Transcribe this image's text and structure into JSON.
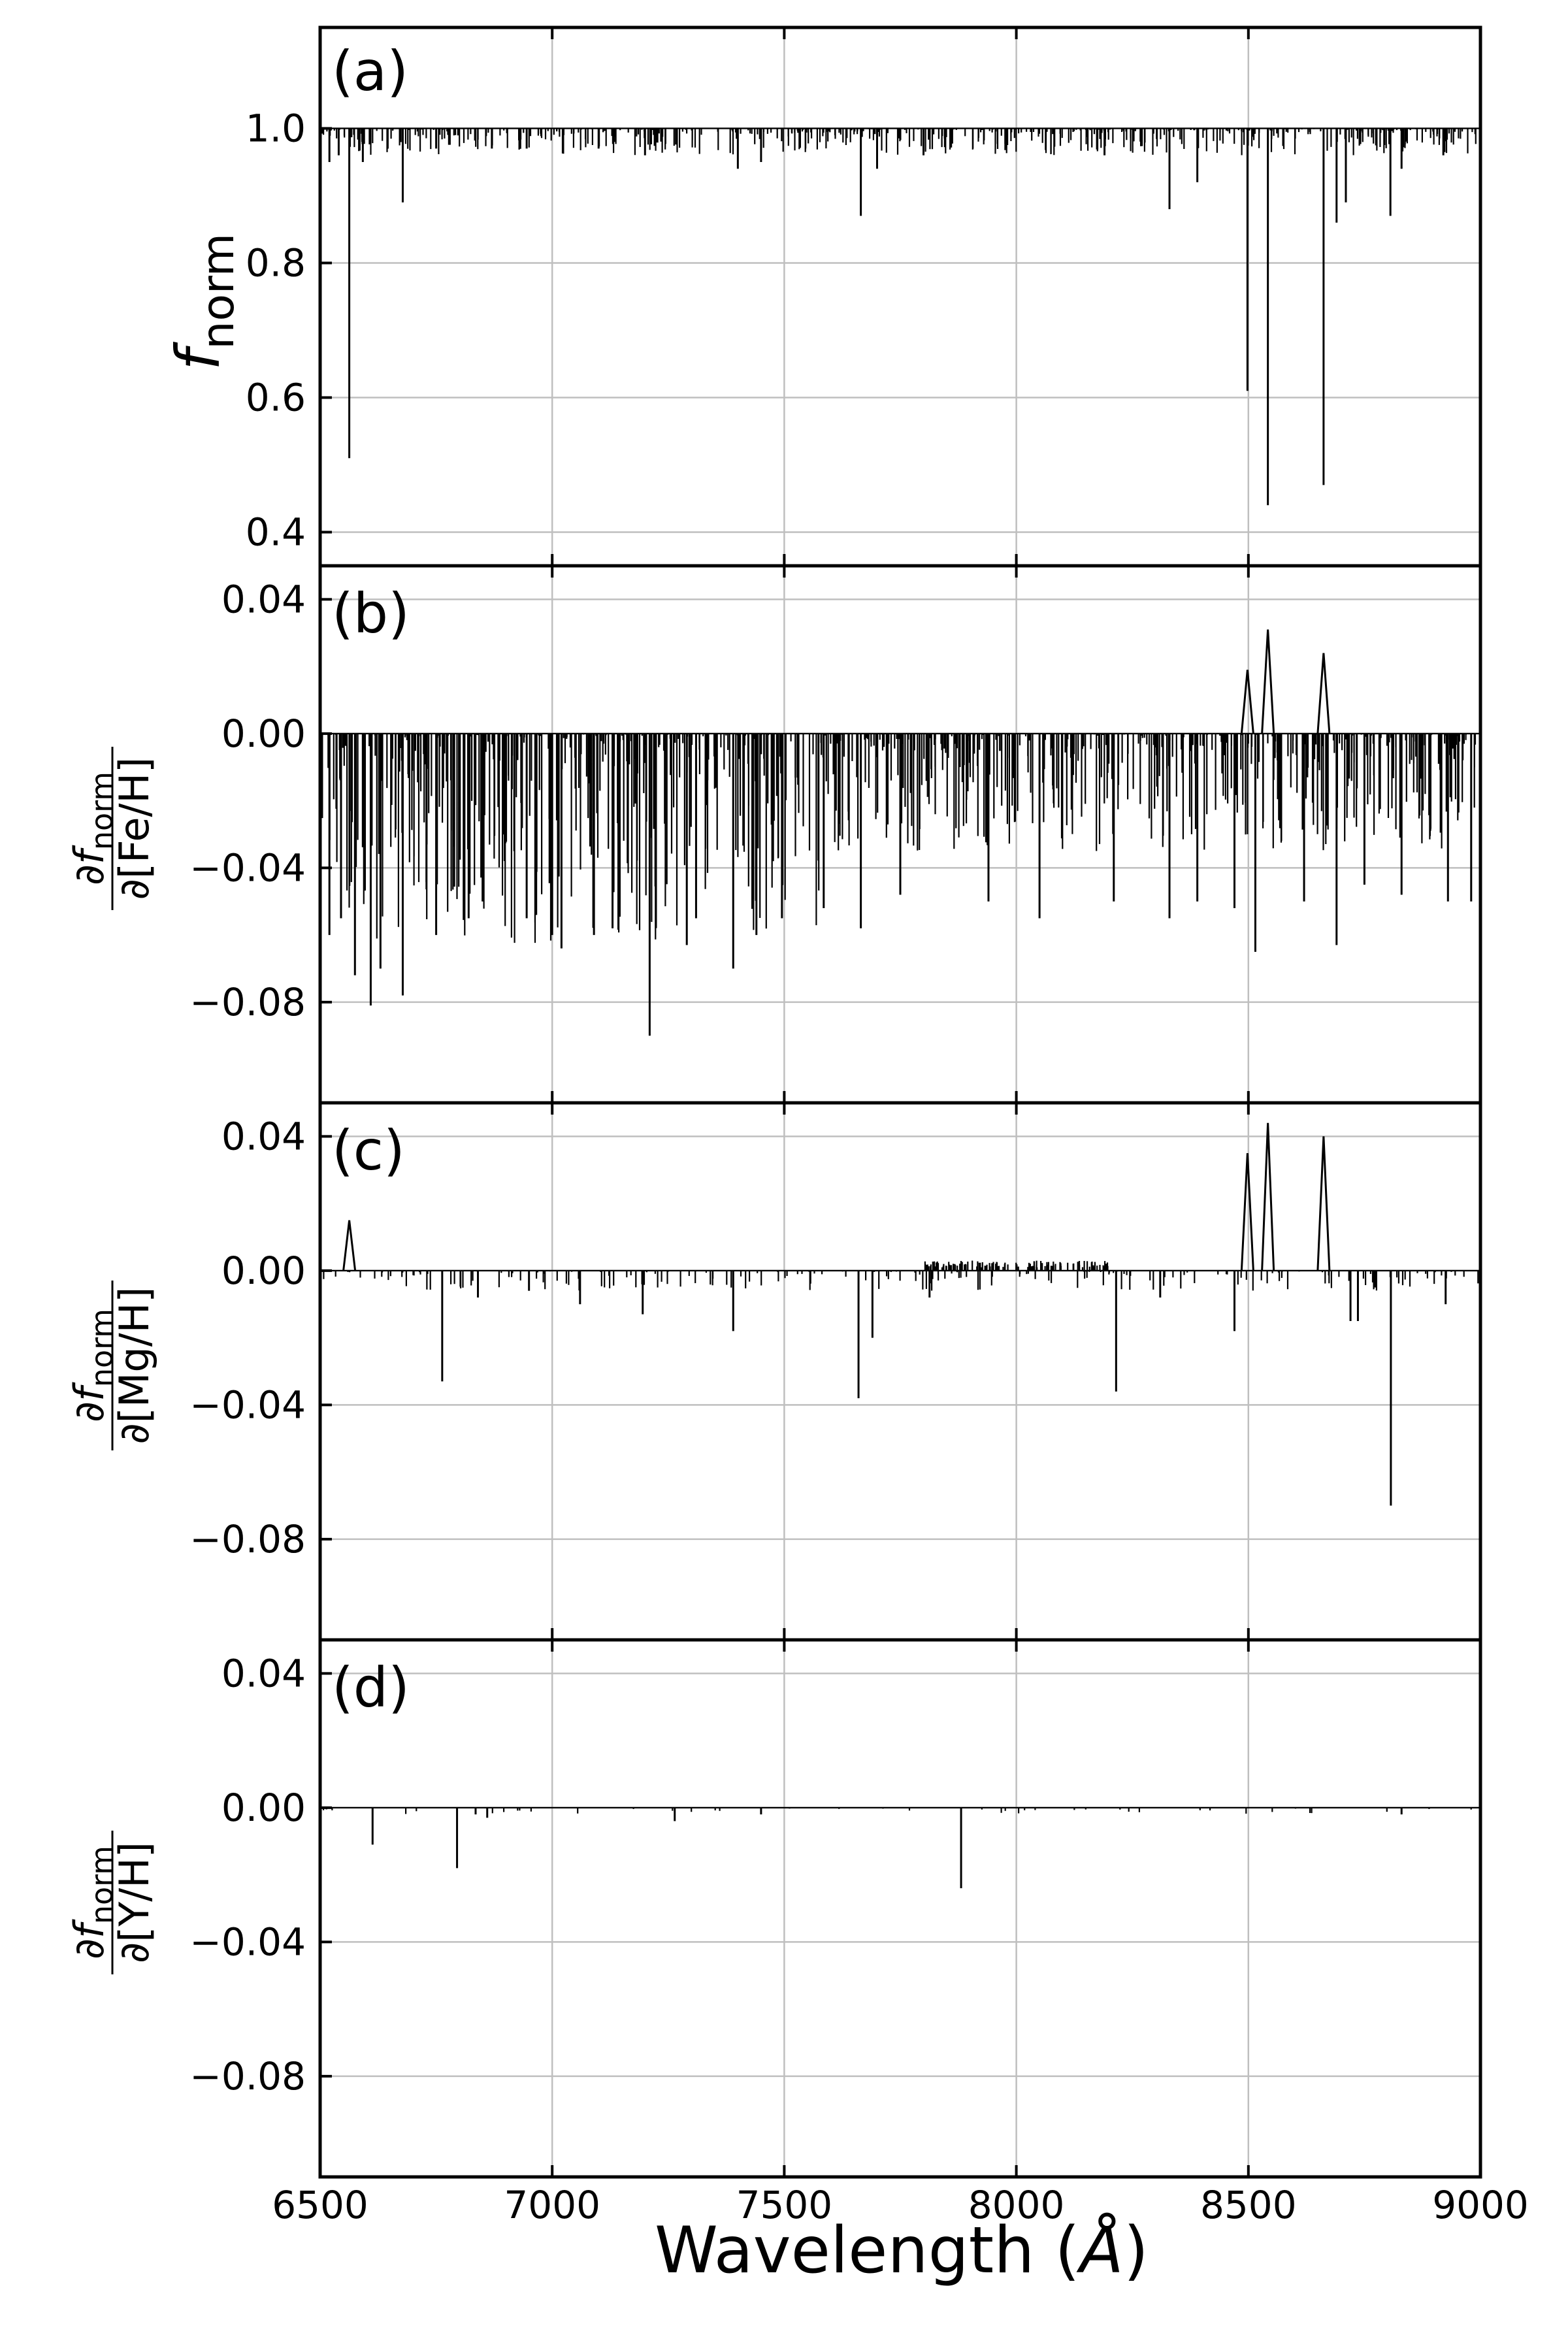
{
  "colors": {
    "line": "#000000",
    "grid": "#bfbfbf",
    "frame": "#000000"
  },
  "xaxis": {
    "label_prefix": "Wavelength (",
    "label_unit": "Å",
    "label_suffix": ")",
    "range": [
      6500,
      9000
    ],
    "ticks": [
      6500,
      7000,
      7500,
      8000,
      8500,
      9000
    ],
    "tick_labels": [
      "6500",
      "7000",
      "7500",
      "8000",
      "8500",
      "9000"
    ]
  },
  "chart_data": [
    {
      "type": "line",
      "panel_label": "(a)",
      "ylabel_main": "f",
      "ylabel_sub": "norm",
      "xlim": [
        6500,
        9000
      ],
      "ylim": [
        0.35,
        1.15
      ],
      "yticks": [
        0.4,
        0.6,
        0.8,
        1.0
      ],
      "ytick_labels": [
        "0.4",
        "0.6",
        "0.8",
        "1.0"
      ],
      "grid": true,
      "baseline": 1.0,
      "lines": [
        [
          6520,
          0.95
        ],
        [
          6540,
          0.96
        ],
        [
          6562.8,
          0.51
        ],
        [
          6592,
          0.95
        ],
        [
          6678,
          0.89
        ],
        [
          6750,
          0.97
        ],
        [
          6870,
          0.97
        ],
        [
          6945,
          0.97
        ],
        [
          7100,
          0.97
        ],
        [
          7200,
          0.96
        ],
        [
          7400,
          0.94
        ],
        [
          7450,
          0.95
        ],
        [
          7665,
          0.87
        ],
        [
          7700,
          0.94
        ],
        [
          7800,
          0.96
        ],
        [
          8190,
          0.96
        ],
        [
          8330,
          0.88
        ],
        [
          8390,
          0.92
        ],
        [
          8498,
          0.61
        ],
        [
          8542,
          0.44
        ],
        [
          8662,
          0.47
        ],
        [
          8690,
          0.86
        ],
        [
          8710,
          0.89
        ],
        [
          8806,
          0.87
        ],
        [
          8830,
          0.94
        ],
        [
          8920,
          0.96
        ]
      ]
    },
    {
      "type": "line",
      "panel_label": "(b)",
      "ylabel_num": "∂f",
      "ylabel_num_sub": "norm",
      "ylabel_den": "∂[Fe/H]",
      "xlim": [
        6500,
        9000
      ],
      "ylim": [
        -0.11,
        0.05
      ],
      "yticks": [
        -0.08,
        -0.04,
        0.0,
        0.04
      ],
      "ytick_labels": [
        "−0.08",
        "−0.04",
        "0.00",
        "0.04"
      ],
      "grid": true,
      "baseline": 0.0,
      "positive_peaks": [
        [
          8498,
          0.019
        ],
        [
          8542,
          0.031
        ],
        [
          8662,
          0.024
        ]
      ],
      "lines": [
        [
          6520,
          -0.06
        ],
        [
          6545,
          -0.055
        ],
        [
          6575,
          -0.072
        ],
        [
          6609,
          -0.081
        ],
        [
          6630,
          -0.07
        ],
        [
          6678,
          -0.078
        ],
        [
          6750,
          -0.06
        ],
        [
          6820,
          -0.055
        ],
        [
          6850,
          -0.05
        ],
        [
          6945,
          -0.055
        ],
        [
          7000,
          -0.06
        ],
        [
          7020,
          -0.064
        ],
        [
          7090,
          -0.06
        ],
        [
          7130,
          -0.058
        ],
        [
          7210,
          -0.09
        ],
        [
          7290,
          -0.063
        ],
        [
          7310,
          -0.055
        ],
        [
          7390,
          -0.07
        ],
        [
          7440,
          -0.06
        ],
        [
          7495,
          -0.055
        ],
        [
          7585,
          -0.052
        ],
        [
          7665,
          -0.058
        ],
        [
          7750,
          -0.048
        ],
        [
          7940,
          -0.05
        ],
        [
          8050,
          -0.055
        ],
        [
          8210,
          -0.05
        ],
        [
          8330,
          -0.055
        ],
        [
          8390,
          -0.05
        ],
        [
          8470,
          -0.052
        ],
        [
          8515,
          -0.065
        ],
        [
          8620,
          -0.05
        ],
        [
          8690,
          -0.063
        ],
        [
          8750,
          -0.045
        ],
        [
          8830,
          -0.048
        ],
        [
          8930,
          -0.05
        ],
        [
          8980,
          -0.05
        ]
      ]
    },
    {
      "type": "line",
      "panel_label": "(c)",
      "ylabel_num": "∂f",
      "ylabel_num_sub": "norm",
      "ylabel_den": "∂[Mg/H]",
      "xlim": [
        6500,
        9000
      ],
      "ylim": [
        -0.11,
        0.05
      ],
      "yticks": [
        -0.08,
        -0.04,
        0.0,
        0.04
      ],
      "ytick_labels": [
        "−0.08",
        "−0.04",
        "0.00",
        "0.04"
      ],
      "grid": true,
      "baseline": 0.0,
      "positive_peaks": [
        [
          6562.8,
          0.015
        ],
        [
          8498,
          0.035
        ],
        [
          8542,
          0.044
        ],
        [
          8662,
          0.04
        ]
      ],
      "lines": [
        [
          6763,
          -0.033
        ],
        [
          6840,
          -0.008
        ],
        [
          6950,
          -0.006
        ],
        [
          7060,
          -0.01
        ],
        [
          7195,
          -0.013
        ],
        [
          7390,
          -0.018
        ],
        [
          7660,
          -0.038
        ],
        [
          7690,
          -0.02
        ],
        [
          7813,
          -0.008
        ],
        [
          8215,
          -0.036
        ],
        [
          8310,
          -0.008
        ],
        [
          8470,
          -0.018
        ],
        [
          8720,
          -0.015
        ],
        [
          8736,
          -0.015
        ],
        [
          8807,
          -0.07
        ],
        [
          8925,
          -0.01
        ]
      ]
    },
    {
      "type": "line",
      "panel_label": "(d)",
      "ylabel_num": "∂f",
      "ylabel_num_sub": "norm",
      "ylabel_den": "∂[Y/H]",
      "xlim": [
        6500,
        9000
      ],
      "ylim": [
        -0.11,
        0.05
      ],
      "yticks": [
        -0.08,
        -0.04,
        0.0,
        0.04
      ],
      "ytick_labels": [
        "−0.08",
        "−0.04",
        "0.00",
        "0.04"
      ],
      "grid": true,
      "baseline": 0.0,
      "lines": [
        [
          6613,
          -0.011
        ],
        [
          6795,
          -0.018
        ],
        [
          6835,
          -0.002
        ],
        [
          6860,
          -0.003
        ],
        [
          7264,
          -0.004
        ],
        [
          7450,
          -0.002
        ],
        [
          7881,
          -0.024
        ],
        [
          8830,
          -0.002
        ]
      ]
    }
  ]
}
